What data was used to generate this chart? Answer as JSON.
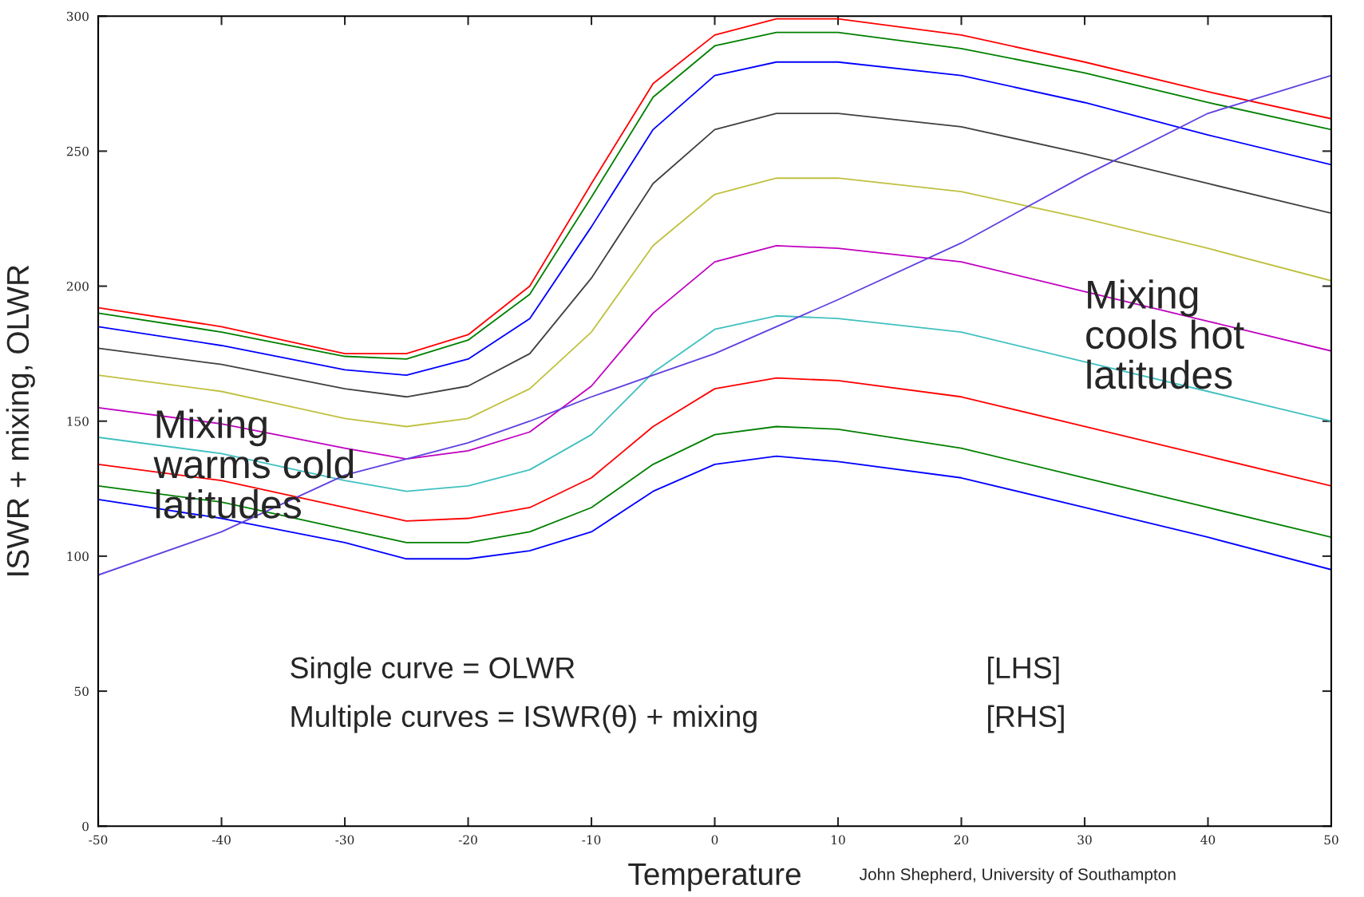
{
  "chart_data": {
    "type": "line",
    "xlabel": "Temperature",
    "ylabel": "ISWR + mixing, OLWR",
    "x": [
      -50,
      -40,
      -30,
      -25,
      -20,
      -15,
      -10,
      -5,
      0,
      5,
      10,
      20,
      30,
      40,
      50
    ],
    "series": [
      {
        "color": "#ff0000",
        "values": [
          192,
          185,
          175,
          175,
          182,
          200,
          238,
          275,
          293,
          299,
          299,
          293,
          283,
          272,
          262
        ]
      },
      {
        "color": "#008000",
        "values": [
          190,
          183,
          174,
          173,
          180,
          197,
          233,
          270,
          289,
          294,
          294,
          288,
          279,
          268,
          258
        ]
      },
      {
        "color": "#0000ff",
        "values": [
          185,
          178,
          169,
          167,
          173,
          188,
          222,
          258,
          278,
          283,
          283,
          278,
          268,
          256,
          245
        ]
      },
      {
        "color": "#404040",
        "values": [
          177,
          171,
          162,
          159,
          163,
          175,
          203,
          238,
          258,
          264,
          264,
          259,
          249,
          238,
          227
        ]
      },
      {
        "color": "#c0c040",
        "values": [
          167,
          161,
          151,
          148,
          151,
          162,
          183,
          215,
          234,
          240,
          240,
          235,
          225,
          214,
          202
        ]
      },
      {
        "color": "#c000c0",
        "values": [
          155,
          149,
          140,
          136,
          139,
          146,
          163,
          190,
          209,
          215,
          214,
          209,
          198,
          187,
          176
        ]
      },
      {
        "color": "#40c0c0",
        "values": [
          144,
          138,
          128,
          124,
          126,
          132,
          145,
          168,
          184,
          189,
          188,
          183,
          172,
          161,
          150
        ]
      },
      {
        "color": "#ff0000",
        "values": [
          134,
          128,
          118,
          113,
          114,
          118,
          129,
          148,
          162,
          166,
          165,
          159,
          148,
          137,
          126
        ]
      },
      {
        "color": "#008000",
        "values": [
          126,
          120,
          110,
          105,
          105,
          109,
          118,
          134,
          145,
          148,
          147,
          140,
          129,
          118,
          107
        ]
      },
      {
        "color": "#0000ff",
        "values": [
          121,
          114,
          105,
          99,
          99,
          102,
          109,
          124,
          134,
          137,
          135,
          129,
          118,
          107,
          95
        ]
      },
      {
        "color": "#6040e0",
        "values": [
          93,
          109,
          130,
          136,
          142,
          150,
          159,
          167,
          175,
          185,
          195,
          216,
          241,
          264,
          278
        ]
      }
    ],
    "xlim": [
      -50,
      50
    ],
    "xticks": [
      -50,
      -40,
      -30,
      -20,
      -10,
      0,
      10,
      20,
      30,
      40,
      50
    ],
    "ylim": [
      0,
      300
    ],
    "yticks": [
      0,
      50,
      100,
      150,
      200,
      250,
      300
    ],
    "marker": "none",
    "line_style": "solid",
    "annotations": [
      "Mixing\nwarms cold\nlatitudes",
      "Mixing\ncools hot\nlatitudes",
      "Single curve = OLWR",
      "[LHS]",
      "Multiple curves = ISWR(θ) + mixing",
      "[RHS]",
      "John Shepherd, University of Southampton"
    ]
  }
}
